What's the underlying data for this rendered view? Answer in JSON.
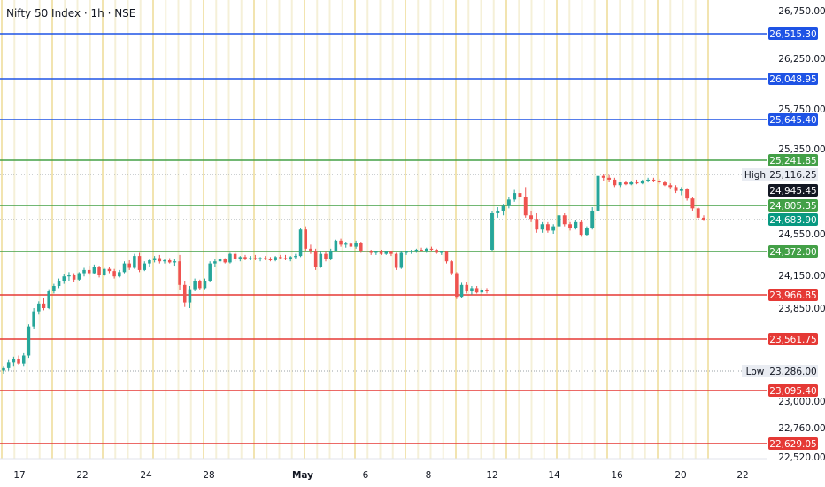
{
  "header": {
    "title": "Nifty 50 Index · 1h · NSE"
  },
  "colors": {
    "up": "#26a69a",
    "down": "#ef5350",
    "resistance_line": "#1e53e5",
    "support_line": "#43a047",
    "red_line": "#e53935",
    "grid": "#f5f0d8",
    "grid_major": "#f2e4b0",
    "dark_tag": "#131722",
    "teal_tag": "#089981",
    "highlow_bg": "#e9ecf2"
  },
  "chart_data": {
    "type": "candlestick",
    "title": "Nifty 50 Index · 1h · NSE",
    "ylim": [
      22520,
      26750
    ],
    "y_ticks": [
      "26,750.00",
      "26,250.00",
      "25,750.00",
      "25,350.00",
      "24,550.00",
      "24,150.00",
      "23,850.00",
      "23,000.00",
      "22,760.00",
      "22,520.00"
    ],
    "y_tick_values": [
      26750,
      26250,
      25750,
      25350,
      24550,
      24150,
      23850,
      23000,
      22760,
      22520
    ],
    "x_tick_labels": [
      "17",
      "22",
      "24",
      "28",
      "May",
      "6",
      "8",
      "12",
      "14",
      "16",
      "20",
      "22"
    ],
    "levels": [
      {
        "value": 26515.3,
        "label": "26,515.30",
        "kind": "resistance"
      },
      {
        "value": 26048.95,
        "label": "26,048.95",
        "kind": "resistance"
      },
      {
        "value": 25645.4,
        "label": "25,645.40",
        "kind": "resistance"
      },
      {
        "value": 25241.85,
        "label": "25,241.85",
        "kind": "support"
      },
      {
        "value": 24805.35,
        "label": "24,805.35",
        "kind": "support"
      },
      {
        "value": 24372.0,
        "label": "24,372.00",
        "kind": "support"
      },
      {
        "value": 23966.85,
        "label": "23,966.85",
        "kind": "red"
      },
      {
        "value": 23561.75,
        "label": "23,561.75",
        "kind": "red"
      },
      {
        "value": 23095.4,
        "label": "23,095.40",
        "kind": "red"
      },
      {
        "value": 22629.05,
        "label": "22,629.05",
        "kind": "red"
      }
    ],
    "high": {
      "label": "High",
      "value": 25116.25,
      "value_label": "25,116.25"
    },
    "low": {
      "label": "Low",
      "value": 23286.0,
      "value_label": "23,286.00"
    },
    "crosshair": {
      "value": 24945.45,
      "label": "24,945.45"
    },
    "last_price": {
      "value": 24683.9,
      "label": "24,683.90"
    },
    "candles": [
      {
        "o": 23290,
        "h": 23330,
        "l": 23260,
        "c": 23310
      },
      {
        "o": 23310,
        "h": 23380,
        "l": 23290,
        "c": 23360
      },
      {
        "o": 23360,
        "h": 23410,
        "l": 23330,
        "c": 23390
      },
      {
        "o": 23390,
        "h": 23420,
        "l": 23340,
        "c": 23350
      },
      {
        "o": 23350,
        "h": 23440,
        "l": 23330,
        "c": 23420
      },
      {
        "o": 23420,
        "h": 23700,
        "l": 23400,
        "c": 23680
      },
      {
        "o": 23680,
        "h": 23850,
        "l": 23660,
        "c": 23820
      },
      {
        "o": 23820,
        "h": 23910,
        "l": 23790,
        "c": 23890
      },
      {
        "o": 23890,
        "h": 23940,
        "l": 23830,
        "c": 23850
      },
      {
        "o": 23850,
        "h": 24020,
        "l": 23840,
        "c": 24000
      },
      {
        "o": 24000,
        "h": 24070,
        "l": 23980,
        "c": 24050
      },
      {
        "o": 24050,
        "h": 24120,
        "l": 24030,
        "c": 24100
      },
      {
        "o": 24100,
        "h": 24160,
        "l": 24070,
        "c": 24140
      },
      {
        "o": 24140,
        "h": 24180,
        "l": 24100,
        "c": 24150
      },
      {
        "o": 24150,
        "h": 24170,
        "l": 24090,
        "c": 24110
      },
      {
        "o": 24110,
        "h": 24180,
        "l": 24100,
        "c": 24170
      },
      {
        "o": 24170,
        "h": 24220,
        "l": 24140,
        "c": 24200
      },
      {
        "o": 24200,
        "h": 24240,
        "l": 24150,
        "c": 24170
      },
      {
        "o": 24170,
        "h": 24250,
        "l": 24160,
        "c": 24230
      },
      {
        "o": 24230,
        "h": 24240,
        "l": 24130,
        "c": 24150
      },
      {
        "o": 24150,
        "h": 24220,
        "l": 24140,
        "c": 24210
      },
      {
        "o": 24210,
        "h": 24230,
        "l": 24170,
        "c": 24190
      },
      {
        "o": 24190,
        "h": 24210,
        "l": 24120,
        "c": 24140
      },
      {
        "o": 24140,
        "h": 24200,
        "l": 24130,
        "c": 24180
      },
      {
        "o": 24180,
        "h": 24280,
        "l": 24170,
        "c": 24260
      },
      {
        "o": 24260,
        "h": 24290,
        "l": 24200,
        "c": 24220
      },
      {
        "o": 24220,
        "h": 24350,
        "l": 24210,
        "c": 24330
      },
      {
        "o": 24330,
        "h": 24360,
        "l": 24180,
        "c": 24200
      },
      {
        "o": 24200,
        "h": 24280,
        "l": 24190,
        "c": 24260
      },
      {
        "o": 24260,
        "h": 24300,
        "l": 24230,
        "c": 24290
      },
      {
        "o": 24290,
        "h": 24330,
        "l": 24270,
        "c": 24310
      },
      {
        "o": 24310,
        "h": 24340,
        "l": 24260,
        "c": 24280
      },
      {
        "o": 24280,
        "h": 24300,
        "l": 24260,
        "c": 24290
      },
      {
        "o": 24290,
        "h": 24310,
        "l": 24260,
        "c": 24270
      },
      {
        "o": 24270,
        "h": 24300,
        "l": 24240,
        "c": 24280
      },
      {
        "o": 24280,
        "h": 24340,
        "l": 24010,
        "c": 24060
      },
      {
        "o": 24060,
        "h": 24100,
        "l": 23860,
        "c": 23900
      },
      {
        "o": 23900,
        "h": 24050,
        "l": 23850,
        "c": 24020
      },
      {
        "o": 24020,
        "h": 24120,
        "l": 24000,
        "c": 24100
      },
      {
        "o": 24100,
        "h": 24110,
        "l": 24010,
        "c": 24030
      },
      {
        "o": 24030,
        "h": 24120,
        "l": 24020,
        "c": 24100
      },
      {
        "o": 24100,
        "h": 24280,
        "l": 24090,
        "c": 24260
      },
      {
        "o": 24260,
        "h": 24300,
        "l": 24230,
        "c": 24280
      },
      {
        "o": 24280,
        "h": 24320,
        "l": 24260,
        "c": 24300
      },
      {
        "o": 24300,
        "h": 24310,
        "l": 24260,
        "c": 24270
      },
      {
        "o": 24270,
        "h": 24360,
        "l": 24260,
        "c": 24350
      },
      {
        "o": 24350,
        "h": 24380,
        "l": 24280,
        "c": 24300
      },
      {
        "o": 24300,
        "h": 24330,
        "l": 24280,
        "c": 24320
      },
      {
        "o": 24320,
        "h": 24340,
        "l": 24290,
        "c": 24300
      },
      {
        "o": 24300,
        "h": 24330,
        "l": 24290,
        "c": 24310
      },
      {
        "o": 24310,
        "h": 24340,
        "l": 24290,
        "c": 24300
      },
      {
        "o": 24300,
        "h": 24320,
        "l": 24280,
        "c": 24310
      },
      {
        "o": 24310,
        "h": 24330,
        "l": 24290,
        "c": 24300
      },
      {
        "o": 24300,
        "h": 24320,
        "l": 24280,
        "c": 24290
      },
      {
        "o": 24290,
        "h": 24330,
        "l": 24280,
        "c": 24320
      },
      {
        "o": 24320,
        "h": 24340,
        "l": 24300,
        "c": 24310
      },
      {
        "o": 24310,
        "h": 24340,
        "l": 24290,
        "c": 24300
      },
      {
        "o": 24300,
        "h": 24330,
        "l": 24280,
        "c": 24320
      },
      {
        "o": 24320,
        "h": 24350,
        "l": 24300,
        "c": 24330
      },
      {
        "o": 24330,
        "h": 24600,
        "l": 24320,
        "c": 24590
      },
      {
        "o": 24590,
        "h": 24620,
        "l": 24380,
        "c": 24400
      },
      {
        "o": 24400,
        "h": 24440,
        "l": 24350,
        "c": 24380
      },
      {
        "o": 24380,
        "h": 24400,
        "l": 24200,
        "c": 24230
      },
      {
        "o": 24230,
        "h": 24370,
        "l": 24220,
        "c": 24350
      },
      {
        "o": 24350,
        "h": 24370,
        "l": 24280,
        "c": 24300
      },
      {
        "o": 24300,
        "h": 24400,
        "l": 24290,
        "c": 24380
      },
      {
        "o": 24380,
        "h": 24490,
        "l": 24370,
        "c": 24480
      },
      {
        "o": 24480,
        "h": 24500,
        "l": 24420,
        "c": 24440
      },
      {
        "o": 24440,
        "h": 24470,
        "l": 24410,
        "c": 24450
      },
      {
        "o": 24450,
        "h": 24470,
        "l": 24400,
        "c": 24420
      },
      {
        "o": 24420,
        "h": 24480,
        "l": 24400,
        "c": 24460
      },
      {
        "o": 24460,
        "h": 24470,
        "l": 24360,
        "c": 24380
      },
      {
        "o": 24380,
        "h": 24400,
        "l": 24350,
        "c": 24370
      },
      {
        "o": 24370,
        "h": 24390,
        "l": 24340,
        "c": 24360
      },
      {
        "o": 24360,
        "h": 24380,
        "l": 24340,
        "c": 24370
      },
      {
        "o": 24370,
        "h": 24390,
        "l": 24340,
        "c": 24350
      },
      {
        "o": 24350,
        "h": 24380,
        "l": 24340,
        "c": 24370
      },
      {
        "o": 24370,
        "h": 24380,
        "l": 24330,
        "c": 24350
      },
      {
        "o": 24350,
        "h": 24360,
        "l": 24200,
        "c": 24220
      },
      {
        "o": 24220,
        "h": 24380,
        "l": 24210,
        "c": 24360
      },
      {
        "o": 24360,
        "h": 24380,
        "l": 24340,
        "c": 24370
      },
      {
        "o": 24370,
        "h": 24390,
        "l": 24350,
        "c": 24380
      },
      {
        "o": 24380,
        "h": 24400,
        "l": 24360,
        "c": 24390
      },
      {
        "o": 24390,
        "h": 24410,
        "l": 24370,
        "c": 24380
      },
      {
        "o": 24380,
        "h": 24410,
        "l": 24360,
        "c": 24400
      },
      {
        "o": 24400,
        "h": 24420,
        "l": 24370,
        "c": 24390
      },
      {
        "o": 24390,
        "h": 24400,
        "l": 24350,
        "c": 24360
      },
      {
        "o": 24360,
        "h": 24380,
        "l": 24340,
        "c": 24370
      },
      {
        "o": 24370,
        "h": 24380,
        "l": 24260,
        "c": 24280
      },
      {
        "o": 24280,
        "h": 24290,
        "l": 24150,
        "c": 24170
      },
      {
        "o": 24170,
        "h": 24180,
        "l": 23930,
        "c": 23950
      },
      {
        "o": 23950,
        "h": 24080,
        "l": 23940,
        "c": 24060
      },
      {
        "o": 24060,
        "h": 24090,
        "l": 23980,
        "c": 24000
      },
      {
        "o": 24000,
        "h": 24050,
        "l": 23970,
        "c": 24030
      },
      {
        "o": 24030,
        "h": 24050,
        "l": 23980,
        "c": 23990
      },
      {
        "o": 23990,
        "h": 24030,
        "l": 23970,
        "c": 24010
      },
      {
        "o": 24010,
        "h": 24030,
        "l": 23980,
        "c": 24000
      },
      {
        "o": 24390,
        "h": 24760,
        "l": 24380,
        "c": 24740
      },
      {
        "o": 24740,
        "h": 24790,
        "l": 24700,
        "c": 24760
      },
      {
        "o": 24760,
        "h": 24820,
        "l": 24720,
        "c": 24800
      },
      {
        "o": 24800,
        "h": 24880,
        "l": 24780,
        "c": 24860
      },
      {
        "o": 24860,
        "h": 24950,
        "l": 24840,
        "c": 24920
      },
      {
        "o": 24920,
        "h": 24950,
        "l": 24850,
        "c": 24880
      },
      {
        "o": 24880,
        "h": 24980,
        "l": 24700,
        "c": 24720
      },
      {
        "o": 24720,
        "h": 24760,
        "l": 24660,
        "c": 24690
      },
      {
        "o": 24690,
        "h": 24740,
        "l": 24560,
        "c": 24590
      },
      {
        "o": 24590,
        "h": 24660,
        "l": 24560,
        "c": 24640
      },
      {
        "o": 24640,
        "h": 24660,
        "l": 24560,
        "c": 24580
      },
      {
        "o": 24580,
        "h": 24640,
        "l": 24550,
        "c": 24620
      },
      {
        "o": 24620,
        "h": 24740,
        "l": 24600,
        "c": 24720
      },
      {
        "o": 24720,
        "h": 24740,
        "l": 24620,
        "c": 24640
      },
      {
        "o": 24640,
        "h": 24660,
        "l": 24580,
        "c": 24600
      },
      {
        "o": 24600,
        "h": 24680,
        "l": 24590,
        "c": 24660
      },
      {
        "o": 24660,
        "h": 24680,
        "l": 24520,
        "c": 24540
      },
      {
        "o": 24540,
        "h": 24620,
        "l": 24530,
        "c": 24600
      },
      {
        "o": 24600,
        "h": 24790,
        "l": 24590,
        "c": 24760
      },
      {
        "o": 24760,
        "h": 25120,
        "l": 24700,
        "c": 25100
      },
      {
        "o": 25100,
        "h": 25116,
        "l": 25050,
        "c": 25080
      },
      {
        "o": 25080,
        "h": 25110,
        "l": 25040,
        "c": 25060
      },
      {
        "o": 25060,
        "h": 25080,
        "l": 24980,
        "c": 25000
      },
      {
        "o": 25000,
        "h": 25040,
        "l": 24980,
        "c": 25030
      },
      {
        "o": 25030,
        "h": 25050,
        "l": 25000,
        "c": 25010
      },
      {
        "o": 25010,
        "h": 25050,
        "l": 25000,
        "c": 25040
      },
      {
        "o": 25040,
        "h": 25060,
        "l": 25010,
        "c": 25020
      },
      {
        "o": 25020,
        "h": 25060,
        "l": 25010,
        "c": 25050
      },
      {
        "o": 25050,
        "h": 25080,
        "l": 25030,
        "c": 25060
      },
      {
        "o": 25060,
        "h": 25080,
        "l": 25040,
        "c": 25050
      },
      {
        "o": 25050,
        "h": 25070,
        "l": 25010,
        "c": 25030
      },
      {
        "o": 25030,
        "h": 25050,
        "l": 24990,
        "c": 25000
      },
      {
        "o": 25000,
        "h": 25020,
        "l": 24960,
        "c": 24980
      },
      {
        "o": 24980,
        "h": 25000,
        "l": 24920,
        "c": 24940
      },
      {
        "o": 24940,
        "h": 24980,
        "l": 24900,
        "c": 24960
      },
      {
        "o": 24960,
        "h": 24970,
        "l": 24850,
        "c": 24870
      },
      {
        "o": 24870,
        "h": 24880,
        "l": 24760,
        "c": 24780
      },
      {
        "o": 24780,
        "h": 24790,
        "l": 24680,
        "c": 24700
      },
      {
        "o": 24700,
        "h": 24720,
        "l": 24670,
        "c": 24684
      }
    ]
  }
}
